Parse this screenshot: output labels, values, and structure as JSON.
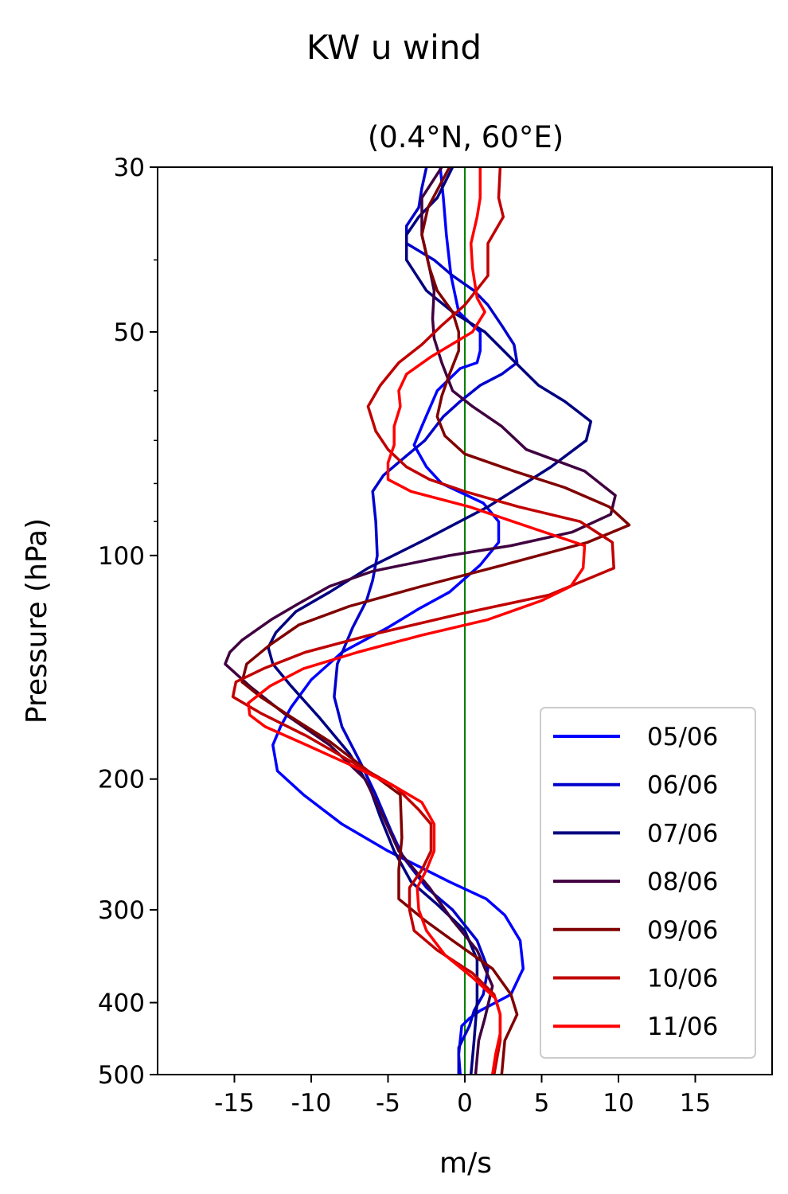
{
  "chart_data": {
    "type": "line",
    "title": "KW u wind",
    "subtitle": "(0.4°N, 60°E)",
    "xlabel": "m/s",
    "ylabel": "Pressure (hPa)",
    "xlim": [
      -20,
      20
    ],
    "ylim": [
      500,
      30
    ],
    "y_scale": "log",
    "x_ticks": [
      -15,
      -10,
      -5,
      0,
      5,
      10,
      15
    ],
    "x_tick_labels": [
      "-15",
      "-10",
      "-5",
      "0",
      "5",
      "10",
      "15"
    ],
    "y_ticks": [
      30,
      50,
      100,
      200,
      300,
      400,
      500
    ],
    "y_tick_labels": [
      "30",
      "50",
      "100",
      "200",
      "300",
      "400",
      "500"
    ],
    "reference_line": {
      "x": 0,
      "color": "#008000"
    },
    "legend_position": "lower right",
    "series": [
      {
        "name": "05/06",
        "color": "#0000ff",
        "points": [
          [
            -0.3,
            500
          ],
          [
            -0.4,
            470
          ],
          [
            -0.2,
            430
          ],
          [
            0.3,
            420
          ],
          [
            1.0,
            410
          ],
          [
            2.0,
            400
          ],
          [
            3.0,
            390
          ],
          [
            3.8,
            360
          ],
          [
            3.6,
            330
          ],
          [
            2.6,
            305
          ],
          [
            1.4,
            290
          ],
          [
            -1.0,
            275
          ],
          [
            -5.0,
            250
          ],
          [
            -8.0,
            230
          ],
          [
            -10.5,
            210
          ],
          [
            -12.2,
            195
          ],
          [
            -12.5,
            180
          ],
          [
            -12.0,
            170
          ],
          [
            -11.3,
            160
          ],
          [
            -10.0,
            147
          ],
          [
            -8.0,
            135
          ],
          [
            -5.0,
            125
          ],
          [
            -3.0,
            118
          ],
          [
            -1.0,
            112
          ],
          [
            1.0,
            103
          ],
          [
            2.2,
            96
          ],
          [
            2.2,
            90
          ],
          [
            1.2,
            85
          ],
          [
            -1.5,
            80
          ],
          [
            -2.5,
            76
          ],
          [
            -3.3,
            71
          ],
          [
            -2.8,
            67
          ],
          [
            -1.8,
            60
          ],
          [
            -0.3,
            56
          ],
          [
            0.8,
            55
          ],
          [
            1.0,
            53
          ],
          [
            1.0,
            50
          ],
          [
            0.5,
            49
          ],
          [
            -0.4,
            47
          ],
          [
            -0.9,
            42
          ],
          [
            -1.2,
            37
          ],
          [
            -1.4,
            33
          ],
          [
            -1.6,
            30
          ]
        ]
      },
      {
        "name": "06/06",
        "color": "#0000cc",
        "points": [
          [
            -0.4,
            500
          ],
          [
            -0.4,
            460
          ],
          [
            0.3,
            430
          ],
          [
            0.6,
            410
          ],
          [
            1.2,
            390
          ],
          [
            1.5,
            360
          ],
          [
            0.8,
            330
          ],
          [
            -0.8,
            300
          ],
          [
            -2.5,
            280
          ],
          [
            -4.0,
            255
          ],
          [
            -4.8,
            235
          ],
          [
            -5.8,
            210
          ],
          [
            -6.8,
            190
          ],
          [
            -8.0,
            170
          ],
          [
            -8.5,
            155
          ],
          [
            -8.3,
            140
          ],
          [
            -7.3,
            125
          ],
          [
            -6.4,
            115
          ],
          [
            -6.0,
            108
          ],
          [
            -5.7,
            100
          ],
          [
            -5.8,
            90
          ],
          [
            -6.0,
            82
          ],
          [
            -5.3,
            78
          ],
          [
            -4.0,
            74
          ],
          [
            -2.6,
            70
          ],
          [
            -1.4,
            65
          ],
          [
            -0.3,
            62
          ],
          [
            1.0,
            59
          ],
          [
            2.4,
            57
          ],
          [
            3.4,
            55
          ],
          [
            3.2,
            52
          ],
          [
            2.4,
            49
          ],
          [
            1.5,
            46
          ],
          [
            0.6,
            44
          ],
          [
            -0.8,
            42
          ],
          [
            -2.0,
            40
          ],
          [
            -3.8,
            38
          ],
          [
            -3.8,
            36
          ],
          [
            -3.0,
            34
          ],
          [
            -2.8,
            32
          ],
          [
            -2.5,
            30
          ]
        ]
      },
      {
        "name": "07/06",
        "color": "#000080",
        "points": [
          [
            0.4,
            500
          ],
          [
            0.6,
            450
          ],
          [
            0.8,
            400
          ],
          [
            0.8,
            350
          ],
          [
            0.0,
            320
          ],
          [
            -1.8,
            295
          ],
          [
            -3.5,
            275
          ],
          [
            -4.6,
            250
          ],
          [
            -5.5,
            225
          ],
          [
            -6.2,
            205
          ],
          [
            -7.5,
            185
          ],
          [
            -9.5,
            165
          ],
          [
            -11.3,
            150
          ],
          [
            -12.5,
            140
          ],
          [
            -12.8,
            133
          ],
          [
            -12.3,
            127
          ],
          [
            -11.0,
            119
          ],
          [
            -8.8,
            112
          ],
          [
            -6.3,
            104
          ],
          [
            -2.5,
            95
          ],
          [
            1.5,
            86
          ],
          [
            5.6,
            76
          ],
          [
            7.9,
            70
          ],
          [
            8.2,
            66
          ],
          [
            6.5,
            62
          ],
          [
            4.8,
            59
          ],
          [
            3.3,
            55
          ],
          [
            1.3,
            50
          ],
          [
            -0.8,
            47
          ],
          [
            -2.5,
            44
          ],
          [
            -3.8,
            40
          ],
          [
            -3.8,
            37
          ],
          [
            -3.0,
            35
          ],
          [
            -1.8,
            33
          ],
          [
            -0.8,
            30
          ]
        ]
      },
      {
        "name": "08/06",
        "color": "#400040",
        "points": [
          [
            0.7,
            500
          ],
          [
            0.9,
            450
          ],
          [
            1.3,
            420
          ],
          [
            1.8,
            380
          ],
          [
            0.8,
            340
          ],
          [
            -0.8,
            310
          ],
          [
            -2.3,
            280
          ],
          [
            -4.3,
            250
          ],
          [
            -5.3,
            225
          ],
          [
            -6.5,
            200
          ],
          [
            -8.8,
            180
          ],
          [
            -11.8,
            163
          ],
          [
            -14.0,
            150
          ],
          [
            -15.6,
            140
          ],
          [
            -15.3,
            135
          ],
          [
            -14.5,
            130
          ],
          [
            -12.6,
            122
          ],
          [
            -10.8,
            116
          ],
          [
            -8.8,
            110
          ],
          [
            -6.0,
            105
          ],
          [
            -1.0,
            100
          ],
          [
            3.0,
            97
          ],
          [
            7.0,
            93
          ],
          [
            9.5,
            88
          ],
          [
            9.8,
            83
          ],
          [
            7.8,
            77
          ],
          [
            4.0,
            72
          ],
          [
            2.4,
            67
          ],
          [
            0.5,
            63
          ],
          [
            -0.8,
            60
          ],
          [
            -1.5,
            55
          ],
          [
            -2.0,
            51
          ],
          [
            -2.1,
            48
          ],
          [
            -2.0,
            44
          ],
          [
            -2.3,
            41
          ],
          [
            -2.8,
            37
          ],
          [
            -2.8,
            33
          ],
          [
            -1.5,
            30
          ]
        ]
      },
      {
        "name": "09/06",
        "color": "#800000",
        "points": [
          [
            2.4,
            500
          ],
          [
            2.6,
            450
          ],
          [
            3.4,
            415
          ],
          [
            3.0,
            390
          ],
          [
            1.8,
            360
          ],
          [
            -0.8,
            330
          ],
          [
            -2.6,
            310
          ],
          [
            -4.3,
            290
          ],
          [
            -4.3,
            265
          ],
          [
            -4.1,
            240
          ],
          [
            -4.2,
            210
          ],
          [
            -6.3,
            195
          ],
          [
            -8.8,
            178
          ],
          [
            -11.3,
            165
          ],
          [
            -13.3,
            155
          ],
          [
            -14.5,
            148
          ],
          [
            -14.2,
            140
          ],
          [
            -12.7,
            132
          ],
          [
            -10.8,
            124
          ],
          [
            -7.5,
            117
          ],
          [
            -2.8,
            110
          ],
          [
            2.5,
            103
          ],
          [
            8.0,
            96
          ],
          [
            10.7,
            91
          ],
          [
            9.4,
            86
          ],
          [
            6.5,
            81
          ],
          [
            3.2,
            77
          ],
          [
            0.0,
            73
          ],
          [
            -1.3,
            69
          ],
          [
            -1.8,
            65
          ],
          [
            -1.5,
            61
          ],
          [
            -1.0,
            57
          ],
          [
            -0.4,
            53
          ],
          [
            -0.4,
            50
          ],
          [
            -0.8,
            47
          ],
          [
            -1.8,
            44
          ],
          [
            -2.3,
            41
          ],
          [
            -2.8,
            37
          ],
          [
            -2.4,
            34
          ],
          [
            -1.0,
            30
          ]
        ]
      },
      {
        "name": "10/06",
        "color": "#c00000",
        "points": [
          [
            1.9,
            500
          ],
          [
            2.3,
            450
          ],
          [
            2.3,
            415
          ],
          [
            1.9,
            390
          ],
          [
            0.5,
            365
          ],
          [
            -1.8,
            340
          ],
          [
            -3.3,
            320
          ],
          [
            -3.6,
            300
          ],
          [
            -3.6,
            280
          ],
          [
            -2.8,
            265
          ],
          [
            -2.2,
            250
          ],
          [
            -2.2,
            230
          ],
          [
            -3.0,
            220
          ],
          [
            -4.5,
            205
          ],
          [
            -7.3,
            190
          ],
          [
            -10.3,
            175
          ],
          [
            -13.3,
            163
          ],
          [
            -15.1,
            155
          ],
          [
            -14.9,
            148
          ],
          [
            -13.1,
            142
          ],
          [
            -10.4,
            135
          ],
          [
            -6.2,
            128
          ],
          [
            -0.4,
            120
          ],
          [
            5.5,
            113
          ],
          [
            9.7,
            104
          ],
          [
            9.6,
            96
          ],
          [
            7.5,
            90
          ],
          [
            3.5,
            86
          ],
          [
            0.0,
            82
          ],
          [
            -2.3,
            79
          ],
          [
            -3.8,
            76
          ],
          [
            -5.0,
            72
          ],
          [
            -5.8,
            68
          ],
          [
            -6.3,
            63
          ],
          [
            -5.5,
            59
          ],
          [
            -4.3,
            55
          ],
          [
            -2.8,
            52
          ],
          [
            -1.5,
            49
          ],
          [
            0.0,
            46
          ],
          [
            1.5,
            42
          ],
          [
            1.5,
            38
          ],
          [
            2.5,
            35
          ],
          [
            2.2,
            33
          ],
          [
            2.3,
            30
          ]
        ]
      },
      {
        "name": "11/06",
        "color": "#ff0000",
        "points": [
          [
            1.8,
            500
          ],
          [
            2.0,
            470
          ],
          [
            2.3,
            440
          ],
          [
            2.3,
            415
          ],
          [
            2.0,
            395
          ],
          [
            0.5,
            370
          ],
          [
            -1.3,
            345
          ],
          [
            -2.5,
            320
          ],
          [
            -3.0,
            300
          ],
          [
            -3.1,
            280
          ],
          [
            -2.5,
            265
          ],
          [
            -2.0,
            250
          ],
          [
            -2.0,
            230
          ],
          [
            -2.8,
            215
          ],
          [
            -4.5,
            205
          ],
          [
            -7.3,
            192
          ],
          [
            -10.3,
            180
          ],
          [
            -13.0,
            170
          ],
          [
            -14.0,
            164
          ],
          [
            -14.1,
            158
          ],
          [
            -12.7,
            150
          ],
          [
            -10.5,
            142
          ],
          [
            -7.0,
            135
          ],
          [
            -2.8,
            128
          ],
          [
            1.5,
            122
          ],
          [
            5.0,
            115
          ],
          [
            6.9,
            110
          ],
          [
            7.7,
            104
          ],
          [
            7.8,
            97
          ],
          [
            4.5,
            92
          ],
          [
            0.3,
            86
          ],
          [
            -3.5,
            82
          ],
          [
            -5.0,
            79
          ],
          [
            -5.0,
            75
          ],
          [
            -4.6,
            71
          ],
          [
            -4.6,
            67
          ],
          [
            -4.2,
            63
          ],
          [
            -4.3,
            60
          ],
          [
            -3.8,
            57
          ],
          [
            -2.2,
            54
          ],
          [
            0.5,
            50
          ],
          [
            1.3,
            47
          ],
          [
            0.8,
            45
          ],
          [
            0.5,
            41
          ],
          [
            0.4,
            38
          ],
          [
            0.8,
            35
          ],
          [
            1.0,
            33
          ],
          [
            1.0,
            30
          ]
        ]
      }
    ]
  }
}
